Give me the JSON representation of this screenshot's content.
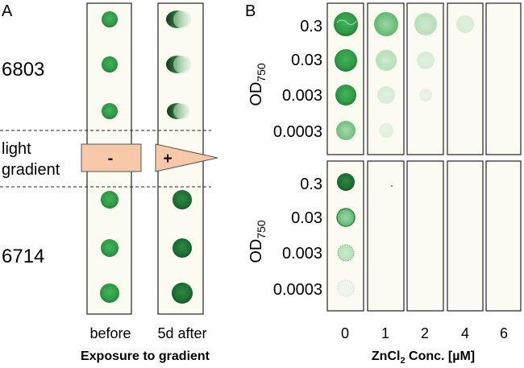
{
  "panel_a": {
    "label": "A",
    "strain_top": "6803",
    "strain_bottom": "6714",
    "gradient_label_line1": "light",
    "gradient_label_line2": "gradient",
    "box_minus": "-",
    "box_plus": "+",
    "col_before": "before",
    "col_after": "5d after",
    "xlabel": "Exposure to gradient"
  },
  "panel_b": {
    "label": "B",
    "od_label": "OD",
    "od_subscript": "750",
    "od_values": [
      "0.3",
      "0.03",
      "0.003",
      "0.0003"
    ],
    "conc_values": [
      "0",
      "1",
      "2",
      "4",
      "6"
    ],
    "xlabel_prefix": "ZnCl",
    "xlabel_subscript": "2",
    "xlabel_suffix": " Conc. [µM]"
  },
  "colors": {
    "spot_green": "#2fa046",
    "dark_green": "#1a6b2e",
    "gradient_fill": "#f7c9a8",
    "strip_bg": "#fbfbf2"
  }
}
